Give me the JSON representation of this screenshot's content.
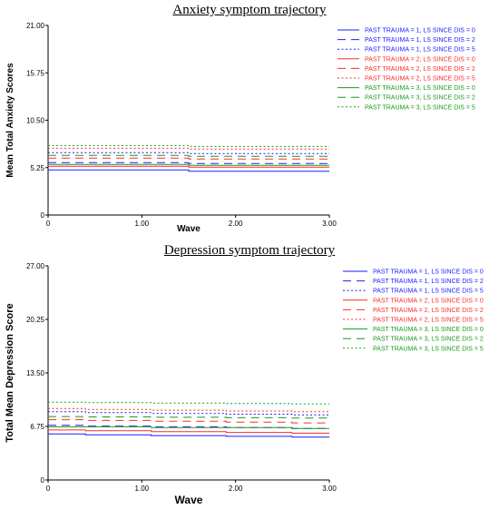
{
  "chart_data": [
    {
      "type": "line",
      "title": "Anxiety symptom trajectory",
      "xlabel": "Wave",
      "ylabel": "Mean Total Anxiety Scores",
      "xlim": [
        0,
        3
      ],
      "ylim": [
        0,
        21
      ],
      "xticks": [
        "0",
        "1.00",
        "2.00",
        "3.00"
      ],
      "yticks": [
        "0",
        "5.25",
        "10.50",
        "15.75",
        "21.00"
      ],
      "ytick_values": [
        0,
        5.25,
        10.5,
        15.75,
        21
      ],
      "legend_position": "top-right",
      "series": [
        {
          "name": "PAST TRAUMA = 1, LS SINCE DIS = 0",
          "color": "#1c1cff",
          "dash": "solid",
          "x": [
            0,
            1.5,
            1.5,
            3
          ],
          "y": [
            5.0,
            5.0,
            4.85,
            4.85
          ]
        },
        {
          "name": "PAST TRAUMA = 1, LS SINCE DIS = 2",
          "color": "#1c1cff",
          "dash": "dashed",
          "x": [
            0,
            1.5,
            1.5,
            3
          ],
          "y": [
            5.8,
            5.8,
            5.7,
            5.7
          ]
        },
        {
          "name": "PAST TRAUMA = 1, LS SINCE DIS = 5",
          "color": "#1c1cff",
          "dash": "dotted",
          "x": [
            0,
            1.5,
            1.5,
            3
          ],
          "y": [
            6.9,
            6.9,
            6.8,
            6.8
          ]
        },
        {
          "name": "PAST TRAUMA = 2, LS SINCE DIS = 0",
          "color": "#ff2a2a",
          "dash": "solid",
          "x": [
            0,
            1.5,
            1.5,
            3
          ],
          "y": [
            5.4,
            5.4,
            5.3,
            5.3
          ]
        },
        {
          "name": "PAST TRAUMA = 2, LS SINCE DIS = 2",
          "color": "#ff2a2a",
          "dash": "dashed",
          "x": [
            0,
            1.5,
            1.5,
            3
          ],
          "y": [
            6.3,
            6.3,
            6.2,
            6.2
          ]
        },
        {
          "name": "PAST TRAUMA = 2, LS SINCE DIS = 5",
          "color": "#ff2a2a",
          "dash": "dotted",
          "x": [
            0,
            1.5,
            1.5,
            3
          ],
          "y": [
            7.4,
            7.4,
            7.3,
            7.3
          ]
        },
        {
          "name": "PAST TRAUMA = 3, LS SINCE DIS = 0",
          "color": "#1a9a1a",
          "dash": "solid",
          "x": [
            0,
            1.5,
            1.5,
            3
          ],
          "y": [
            5.6,
            5.6,
            5.5,
            5.5
          ]
        },
        {
          "name": "PAST TRAUMA = 3, LS SINCE DIS = 2",
          "color": "#1a9a1a",
          "dash": "dashed",
          "x": [
            0,
            1.5,
            1.5,
            3
          ],
          "y": [
            6.6,
            6.6,
            6.5,
            6.5
          ]
        },
        {
          "name": "PAST TRAUMA = 3, LS SINCE DIS = 5",
          "color": "#1a9a1a",
          "dash": "dotted",
          "x": [
            0,
            1.5,
            1.5,
            3
          ],
          "y": [
            7.7,
            7.7,
            7.6,
            7.6
          ]
        }
      ]
    },
    {
      "type": "line",
      "title": "Depression symptom trajectory",
      "xlabel": "Wave",
      "ylabel": "Total Mean Depression Score",
      "xlim": [
        0,
        3
      ],
      "ylim": [
        0,
        27
      ],
      "xticks": [
        "0",
        "1.00",
        "2.00",
        "3.00"
      ],
      "yticks": [
        "0",
        "6.75",
        "13.50",
        "20.25",
        "27.00"
      ],
      "ytick_values": [
        0,
        6.75,
        13.5,
        20.25,
        27
      ],
      "legend_position": "top-right",
      "series": [
        {
          "name": "PAST TRAUMA = 1, LS SINCE DIS = 0",
          "color": "#1c1cff",
          "dash": "solid",
          "x": [
            0,
            0.4,
            0.4,
            1.1,
            1.1,
            1.9,
            1.9,
            2.6,
            2.6,
            3
          ],
          "y": [
            5.8,
            5.8,
            5.7,
            5.7,
            5.6,
            5.6,
            5.5,
            5.5,
            5.4,
            5.4
          ]
        },
        {
          "name": "PAST TRAUMA = 1, LS SINCE DIS = 2",
          "color": "#1c1cff",
          "dash": "dashed",
          "x": [
            0,
            0.4,
            0.4,
            1.1,
            1.1,
            1.9,
            1.9,
            2.6,
            2.6,
            3
          ],
          "y": [
            6.9,
            6.9,
            6.8,
            6.8,
            6.7,
            6.7,
            6.6,
            6.6,
            6.5,
            6.5
          ]
        },
        {
          "name": "PAST TRAUMA = 1, LS SINCE DIS = 5",
          "color": "#1c1cff",
          "dash": "dotted",
          "x": [
            0,
            0.4,
            0.4,
            1.1,
            1.1,
            1.9,
            1.9,
            2.6,
            2.6,
            3
          ],
          "y": [
            8.6,
            8.6,
            8.5,
            8.5,
            8.4,
            8.4,
            8.3,
            8.3,
            8.2,
            8.2
          ]
        },
        {
          "name": "PAST TRAUMA = 2, LS SINCE DIS = 0",
          "color": "#ff2a2a",
          "dash": "solid",
          "x": [
            0,
            0.4,
            0.4,
            1.1,
            1.1,
            1.9,
            1.9,
            2.6,
            2.6,
            3
          ],
          "y": [
            6.3,
            6.3,
            6.2,
            6.2,
            6.1,
            6.1,
            6.0,
            6.0,
            5.9,
            5.9
          ]
        },
        {
          "name": "PAST TRAUMA = 2, LS SINCE DIS = 2",
          "color": "#ff2a2a",
          "dash": "dashed",
          "x": [
            0,
            0.4,
            0.4,
            1.1,
            1.1,
            1.9,
            1.9,
            2.6,
            2.6,
            3
          ],
          "y": [
            7.6,
            7.6,
            7.5,
            7.5,
            7.4,
            7.4,
            7.3,
            7.3,
            7.2,
            7.2
          ]
        },
        {
          "name": "PAST TRAUMA = 2, LS SINCE DIS = 5",
          "color": "#ff2a2a",
          "dash": "dotted",
          "x": [
            0,
            0.4,
            0.4,
            1.1,
            1.1,
            1.9,
            1.9,
            2.6,
            2.6,
            3
          ],
          "y": [
            9.0,
            9.0,
            8.9,
            8.9,
            8.8,
            8.8,
            8.7,
            8.7,
            8.6,
            8.6
          ]
        },
        {
          "name": "PAST TRAUMA = 3, LS SINCE DIS = 0",
          "color": "#1a9a1a",
          "dash": "solid",
          "x": [
            0,
            0.4,
            0.4,
            1.1,
            1.1,
            1.9,
            1.9,
            2.6,
            2.6,
            3
          ],
          "y": [
            6.7,
            6.7,
            6.7,
            6.7,
            6.6,
            6.6,
            6.6,
            6.6,
            6.5,
            6.5
          ]
        },
        {
          "name": "PAST TRAUMA = 3, LS SINCE DIS = 2",
          "color": "#1a9a1a",
          "dash": "dashed",
          "x": [
            0,
            0.4,
            0.4,
            1.1,
            1.1,
            1.9,
            1.9,
            2.6,
            2.6,
            3
          ],
          "y": [
            8.0,
            8.0,
            7.95,
            7.95,
            7.9,
            7.9,
            7.85,
            7.85,
            7.8,
            7.8
          ]
        },
        {
          "name": "PAST TRAUMA = 3, LS SINCE DIS = 5",
          "color": "#1a9a1a",
          "dash": "dotted",
          "x": [
            0,
            0.4,
            0.4,
            1.1,
            1.1,
            1.9,
            1.9,
            2.6,
            2.6,
            3
          ],
          "y": [
            9.8,
            9.8,
            9.75,
            9.75,
            9.7,
            9.7,
            9.65,
            9.65,
            9.6,
            9.6
          ]
        }
      ]
    }
  ]
}
